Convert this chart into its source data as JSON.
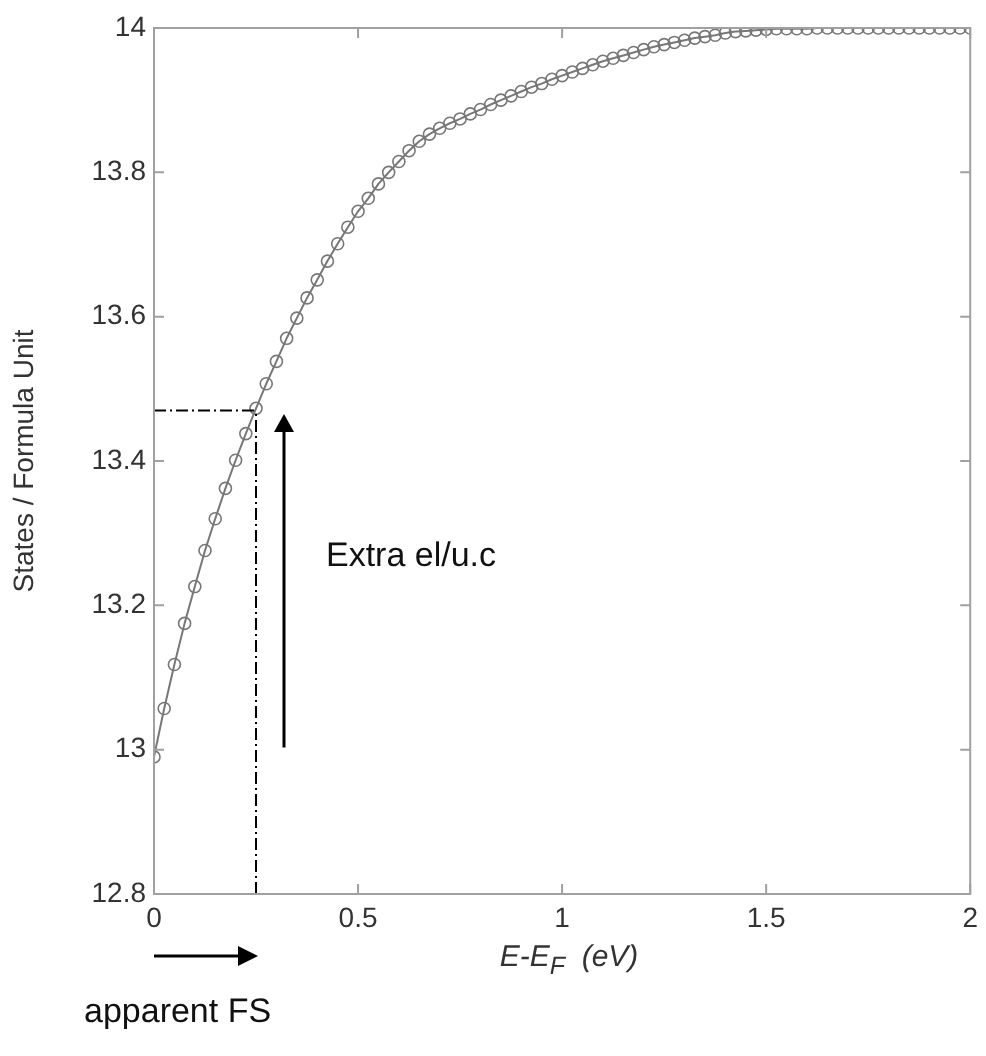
{
  "chart_data": {
    "type": "line",
    "xlabel": "E-E$_{F}$  (eV)",
    "ylabel": "States / Formula Unit",
    "x": [
      0,
      0.025,
      0.05,
      0.075,
      0.1,
      0.125,
      0.15,
      0.175,
      0.2,
      0.225,
      0.25,
      0.275,
      0.3,
      0.325,
      0.35,
      0.375,
      0.4,
      0.425,
      0.45,
      0.475,
      0.5,
      0.525,
      0.55,
      0.575,
      0.6,
      0.625,
      0.65,
      0.675,
      0.7,
      0.725,
      0.75,
      0.775,
      0.8,
      0.825,
      0.85,
      0.875,
      0.9,
      0.925,
      0.95,
      0.975,
      1,
      1.025,
      1.05,
      1.075,
      1.1,
      1.125,
      1.15,
      1.175,
      1.2,
      1.225,
      1.25,
      1.275,
      1.3,
      1.325,
      1.35,
      1.375,
      1.4,
      1.425,
      1.45,
      1.475,
      1.5,
      1.525,
      1.55,
      1.575,
      1.6,
      1.625,
      1.65,
      1.675,
      1.7,
      1.725,
      1.75,
      1.775,
      1.8,
      1.825,
      1.85,
      1.875,
      1.9,
      1.925,
      1.95,
      1.975,
      2
    ],
    "series": [
      {
        "color": "#777777",
        "values": [
          12.99,
          13.057,
          13.118,
          13.175,
          13.226,
          13.276,
          13.32,
          13.362,
          13.401,
          13.438,
          13.473,
          13.507,
          13.538,
          13.57,
          13.598,
          13.626,
          13.651,
          13.677,
          13.701,
          13.724,
          13.746,
          13.764,
          13.784,
          13.8,
          13.815,
          13.83,
          13.843,
          13.853,
          13.861,
          13.868,
          13.874,
          13.881,
          13.887,
          13.894,
          13.9,
          13.906,
          13.912,
          13.918,
          13.923,
          13.929,
          13.934,
          13.939,
          13.944,
          13.949,
          13.954,
          13.958,
          13.962,
          13.966,
          13.97,
          13.974,
          13.977,
          13.98,
          13.983,
          13.986,
          13.988,
          13.99,
          13.993,
          13.995,
          13.996,
          13.997,
          13.998,
          13.999,
          13.999,
          13.999,
          13.999,
          14,
          14,
          14,
          14,
          14,
          14,
          14,
          14,
          14,
          14,
          14,
          14,
          14,
          14,
          14,
          14
        ]
      }
    ],
    "xlim": [
      0,
      2
    ],
    "xticks": [
      0,
      0.5,
      1,
      1.5,
      2
    ],
    "ylim": [
      12.8,
      14
    ],
    "yticks": [
      12.8,
      13,
      13.2,
      13.4,
      13.6,
      13.8,
      14
    ],
    "ref_lines": [
      {
        "axis": "x",
        "value": 0.25,
        "color": "#000000",
        "line_style": "dashed"
      },
      {
        "axis": "y",
        "value": 13.47,
        "color": "#000000",
        "line_style": "dashed"
      }
    ],
    "annotations": [
      "Extra el/u.c",
      "apparent FS"
    ],
    "marker": "circle",
    "line_style": "solid",
    "grid": false,
    "legend": false
  }
}
